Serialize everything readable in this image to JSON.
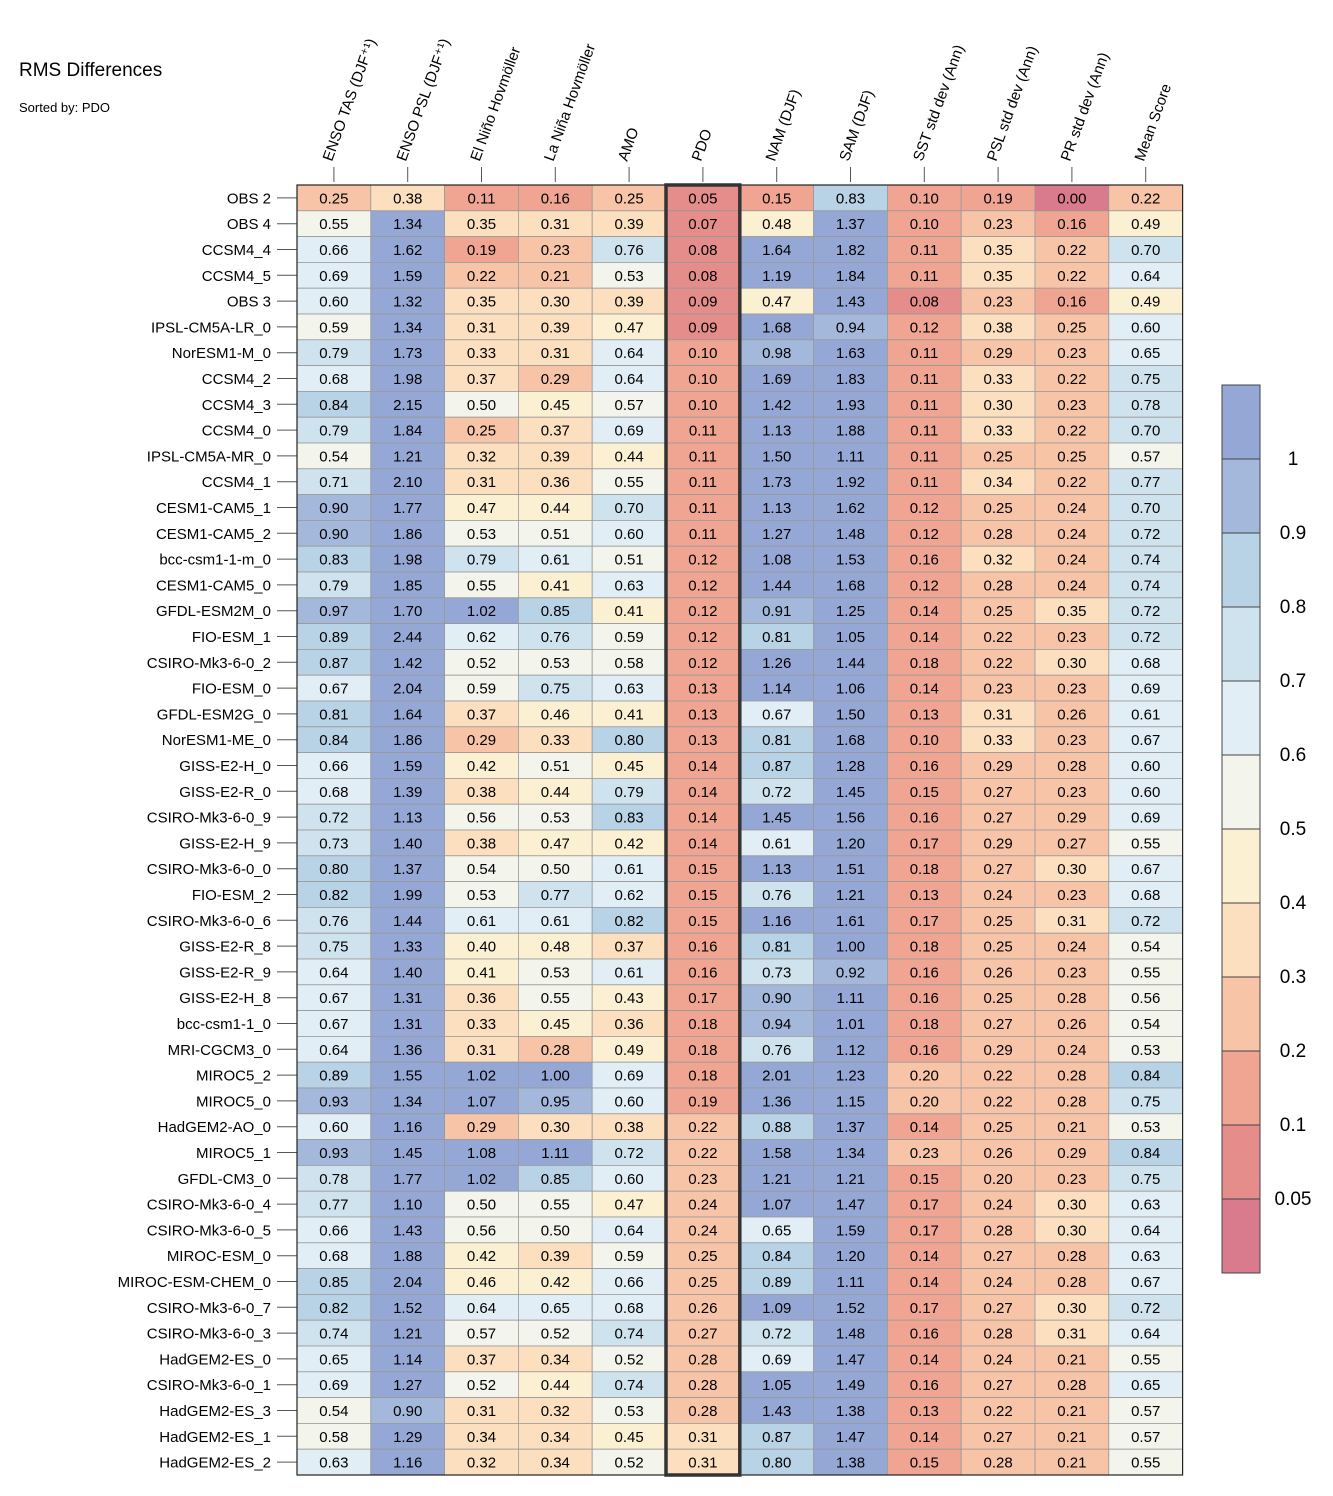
{
  "chart_data": {
    "type": "heatmap",
    "title": "RMS Differences",
    "subtitle": "Sorted by: PDO",
    "columns": [
      "ENSO TAS (DJF⁺¹)",
      "ENSO PSL (DJF⁺¹)",
      "El Niño Hovmöller",
      "La Niña Hovmöller",
      "AMO",
      "PDO",
      "NAM (DJF)",
      "SAM (DJF)",
      "SST std dev (Ann)",
      "PSL std dev (Ann)",
      "PR std dev (Ann)",
      "Mean Score"
    ],
    "highlighted_column": "PDO",
    "rows": [
      "OBS 2",
      "OBS 4",
      "CCSM4_4",
      "CCSM4_5",
      "OBS 3",
      "IPSL-CM5A-LR_0",
      "NorESM1-M_0",
      "CCSM4_2",
      "CCSM4_3",
      "CCSM4_0",
      "IPSL-CM5A-MR_0",
      "CCSM4_1",
      "CESM1-CAM5_1",
      "CESM1-CAM5_2",
      "bcc-csm1-1-m_0",
      "CESM1-CAM5_0",
      "GFDL-ESM2M_0",
      "FIO-ESM_1",
      "CSIRO-Mk3-6-0_2",
      "FIO-ESM_0",
      "GFDL-ESM2G_0",
      "NorESM1-ME_0",
      "GISS-E2-H_0",
      "GISS-E2-R_0",
      "CSIRO-Mk3-6-0_9",
      "GISS-E2-H_9",
      "CSIRO-Mk3-6-0_0",
      "FIO-ESM_2",
      "CSIRO-Mk3-6-0_6",
      "GISS-E2-R_8",
      "GISS-E2-R_9",
      "GISS-E2-H_8",
      "bcc-csm1-1_0",
      "MRI-CGCM3_0",
      "MIROC5_2",
      "MIROC5_0",
      "HadGEM2-AO_0",
      "MIROC5_1",
      "GFDL-CM3_0",
      "CSIRO-Mk3-6-0_4",
      "CSIRO-Mk3-6-0_5",
      "MIROC-ESM_0",
      "MIROC-ESM-CHEM_0",
      "CSIRO-Mk3-6-0_7",
      "CSIRO-Mk3-6-0_3",
      "HadGEM2-ES_0",
      "CSIRO-Mk3-6-0_1",
      "HadGEM2-ES_3",
      "HadGEM2-ES_1",
      "HadGEM2-ES_2"
    ],
    "values": [
      [
        "0.25",
        "0.38",
        "0.11",
        "0.16",
        "0.25",
        "0.05",
        "0.15",
        "0.83",
        "0.10",
        "0.19",
        "0.00",
        "0.22"
      ],
      [
        "0.55",
        "1.34",
        "0.35",
        "0.31",
        "0.39",
        "0.07",
        "0.48",
        "1.37",
        "0.10",
        "0.23",
        "0.16",
        "0.49"
      ],
      [
        "0.66",
        "1.62",
        "0.19",
        "0.23",
        "0.76",
        "0.08",
        "1.64",
        "1.82",
        "0.11",
        "0.35",
        "0.22",
        "0.70"
      ],
      [
        "0.69",
        "1.59",
        "0.22",
        "0.21",
        "0.53",
        "0.08",
        "1.19",
        "1.84",
        "0.11",
        "0.35",
        "0.22",
        "0.64"
      ],
      [
        "0.60",
        "1.32",
        "0.35",
        "0.30",
        "0.39",
        "0.09",
        "0.47",
        "1.43",
        "0.08",
        "0.23",
        "0.16",
        "0.49"
      ],
      [
        "0.59",
        "1.34",
        "0.31",
        "0.39",
        "0.47",
        "0.09",
        "1.68",
        "0.94",
        "0.12",
        "0.38",
        "0.25",
        "0.60"
      ],
      [
        "0.79",
        "1.73",
        "0.33",
        "0.31",
        "0.64",
        "0.10",
        "0.98",
        "1.63",
        "0.11",
        "0.29",
        "0.23",
        "0.65"
      ],
      [
        "0.68",
        "1.98",
        "0.37",
        "0.29",
        "0.64",
        "0.10",
        "1.69",
        "1.83",
        "0.11",
        "0.33",
        "0.22",
        "0.75"
      ],
      [
        "0.84",
        "2.15",
        "0.50",
        "0.45",
        "0.57",
        "0.10",
        "1.42",
        "1.93",
        "0.11",
        "0.30",
        "0.23",
        "0.78"
      ],
      [
        "0.79",
        "1.84",
        "0.25",
        "0.37",
        "0.69",
        "0.11",
        "1.13",
        "1.88",
        "0.11",
        "0.33",
        "0.22",
        "0.70"
      ],
      [
        "0.54",
        "1.21",
        "0.32",
        "0.39",
        "0.44",
        "0.11",
        "1.50",
        "1.11",
        "0.11",
        "0.25",
        "0.25",
        "0.57"
      ],
      [
        "0.71",
        "2.10",
        "0.31",
        "0.36",
        "0.55",
        "0.11",
        "1.73",
        "1.92",
        "0.11",
        "0.34",
        "0.22",
        "0.77"
      ],
      [
        "0.90",
        "1.77",
        "0.47",
        "0.44",
        "0.70",
        "0.11",
        "1.13",
        "1.62",
        "0.12",
        "0.25",
        "0.24",
        "0.70"
      ],
      [
        "0.90",
        "1.86",
        "0.53",
        "0.51",
        "0.60",
        "0.11",
        "1.27",
        "1.48",
        "0.12",
        "0.28",
        "0.24",
        "0.72"
      ],
      [
        "0.83",
        "1.98",
        "0.79",
        "0.61",
        "0.51",
        "0.12",
        "1.08",
        "1.53",
        "0.16",
        "0.32",
        "0.24",
        "0.74"
      ],
      [
        "0.79",
        "1.85",
        "0.55",
        "0.41",
        "0.63",
        "0.12",
        "1.44",
        "1.68",
        "0.12",
        "0.28",
        "0.24",
        "0.74"
      ],
      [
        "0.97",
        "1.70",
        "1.02",
        "0.85",
        "0.41",
        "0.12",
        "0.91",
        "1.25",
        "0.14",
        "0.25",
        "0.35",
        "0.72"
      ],
      [
        "0.89",
        "2.44",
        "0.62",
        "0.76",
        "0.59",
        "0.12",
        "0.81",
        "1.05",
        "0.14",
        "0.22",
        "0.23",
        "0.72"
      ],
      [
        "0.87",
        "1.42",
        "0.52",
        "0.53",
        "0.58",
        "0.12",
        "1.26",
        "1.44",
        "0.18",
        "0.22",
        "0.30",
        "0.68"
      ],
      [
        "0.67",
        "2.04",
        "0.59",
        "0.75",
        "0.63",
        "0.13",
        "1.14",
        "1.06",
        "0.14",
        "0.23",
        "0.23",
        "0.69"
      ],
      [
        "0.81",
        "1.64",
        "0.37",
        "0.46",
        "0.41",
        "0.13",
        "0.67",
        "1.50",
        "0.13",
        "0.31",
        "0.26",
        "0.61"
      ],
      [
        "0.84",
        "1.86",
        "0.29",
        "0.33",
        "0.80",
        "0.13",
        "0.81",
        "1.68",
        "0.10",
        "0.33",
        "0.23",
        "0.67"
      ],
      [
        "0.66",
        "1.59",
        "0.42",
        "0.51",
        "0.45",
        "0.14",
        "0.87",
        "1.28",
        "0.16",
        "0.29",
        "0.28",
        "0.60"
      ],
      [
        "0.68",
        "1.39",
        "0.38",
        "0.44",
        "0.79",
        "0.14",
        "0.72",
        "1.45",
        "0.15",
        "0.27",
        "0.23",
        "0.60"
      ],
      [
        "0.72",
        "1.13",
        "0.56",
        "0.53",
        "0.83",
        "0.14",
        "1.45",
        "1.56",
        "0.16",
        "0.27",
        "0.29",
        "0.69"
      ],
      [
        "0.73",
        "1.40",
        "0.38",
        "0.47",
        "0.42",
        "0.14",
        "0.61",
        "1.20",
        "0.17",
        "0.29",
        "0.27",
        "0.55"
      ],
      [
        "0.80",
        "1.37",
        "0.54",
        "0.50",
        "0.61",
        "0.15",
        "1.13",
        "1.51",
        "0.18",
        "0.27",
        "0.30",
        "0.67"
      ],
      [
        "0.82",
        "1.99",
        "0.53",
        "0.77",
        "0.62",
        "0.15",
        "0.76",
        "1.21",
        "0.13",
        "0.24",
        "0.23",
        "0.68"
      ],
      [
        "0.76",
        "1.44",
        "0.61",
        "0.61",
        "0.82",
        "0.15",
        "1.16",
        "1.61",
        "0.17",
        "0.25",
        "0.31",
        "0.72"
      ],
      [
        "0.75",
        "1.33",
        "0.40",
        "0.48",
        "0.37",
        "0.16",
        "0.81",
        "1.00",
        "0.18",
        "0.25",
        "0.24",
        "0.54"
      ],
      [
        "0.64",
        "1.40",
        "0.41",
        "0.53",
        "0.61",
        "0.16",
        "0.73",
        "0.92",
        "0.16",
        "0.26",
        "0.23",
        "0.55"
      ],
      [
        "0.67",
        "1.31",
        "0.36",
        "0.55",
        "0.43",
        "0.17",
        "0.90",
        "1.11",
        "0.16",
        "0.25",
        "0.28",
        "0.56"
      ],
      [
        "0.67",
        "1.31",
        "0.33",
        "0.45",
        "0.36",
        "0.18",
        "0.94",
        "1.01",
        "0.18",
        "0.27",
        "0.26",
        "0.54"
      ],
      [
        "0.64",
        "1.36",
        "0.31",
        "0.28",
        "0.49",
        "0.18",
        "0.76",
        "1.12",
        "0.16",
        "0.29",
        "0.24",
        "0.53"
      ],
      [
        "0.89",
        "1.55",
        "1.02",
        "1.00",
        "0.69",
        "0.18",
        "2.01",
        "1.23",
        "0.20",
        "0.22",
        "0.28",
        "0.84"
      ],
      [
        "0.93",
        "1.34",
        "1.07",
        "0.95",
        "0.60",
        "0.19",
        "1.36",
        "1.15",
        "0.20",
        "0.22",
        "0.28",
        "0.75"
      ],
      [
        "0.60",
        "1.16",
        "0.29",
        "0.30",
        "0.38",
        "0.22",
        "0.88",
        "1.37",
        "0.14",
        "0.25",
        "0.21",
        "0.53"
      ],
      [
        "0.93",
        "1.45",
        "1.08",
        "1.11",
        "0.72",
        "0.22",
        "1.58",
        "1.34",
        "0.23",
        "0.26",
        "0.29",
        "0.84"
      ],
      [
        "0.78",
        "1.77",
        "1.02",
        "0.85",
        "0.60",
        "0.23",
        "1.21",
        "1.21",
        "0.15",
        "0.20",
        "0.23",
        "0.75"
      ],
      [
        "0.77",
        "1.10",
        "0.50",
        "0.55",
        "0.47",
        "0.24",
        "1.07",
        "1.47",
        "0.17",
        "0.24",
        "0.30",
        "0.63"
      ],
      [
        "0.66",
        "1.43",
        "0.56",
        "0.50",
        "0.64",
        "0.24",
        "0.65",
        "1.59",
        "0.17",
        "0.28",
        "0.30",
        "0.64"
      ],
      [
        "0.68",
        "1.88",
        "0.42",
        "0.39",
        "0.59",
        "0.25",
        "0.84",
        "1.20",
        "0.14",
        "0.27",
        "0.28",
        "0.63"
      ],
      [
        "0.85",
        "2.04",
        "0.46",
        "0.42",
        "0.66",
        "0.25",
        "0.89",
        "1.11",
        "0.14",
        "0.24",
        "0.28",
        "0.67"
      ],
      [
        "0.82",
        "1.52",
        "0.64",
        "0.65",
        "0.68",
        "0.26",
        "1.09",
        "1.52",
        "0.17",
        "0.27",
        "0.30",
        "0.72"
      ],
      [
        "0.74",
        "1.21",
        "0.57",
        "0.52",
        "0.74",
        "0.27",
        "0.72",
        "1.48",
        "0.16",
        "0.28",
        "0.31",
        "0.64"
      ],
      [
        "0.65",
        "1.14",
        "0.37",
        "0.34",
        "0.52",
        "0.28",
        "0.69",
        "1.47",
        "0.14",
        "0.24",
        "0.21",
        "0.55"
      ],
      [
        "0.69",
        "1.27",
        "0.52",
        "0.44",
        "0.74",
        "0.28",
        "1.05",
        "1.49",
        "0.16",
        "0.27",
        "0.28",
        "0.65"
      ],
      [
        "0.54",
        "0.90",
        "0.31",
        "0.32",
        "0.53",
        "0.28",
        "1.43",
        "1.38",
        "0.13",
        "0.22",
        "0.21",
        "0.57"
      ],
      [
        "0.58",
        "1.29",
        "0.34",
        "0.34",
        "0.45",
        "0.31",
        "0.87",
        "1.47",
        "0.14",
        "0.27",
        "0.21",
        "0.57"
      ],
      [
        "0.63",
        "1.16",
        "0.32",
        "0.34",
        "0.52",
        "0.31",
        "0.80",
        "1.38",
        "0.15",
        "0.28",
        "0.21",
        "0.55"
      ]
    ],
    "colorbar": {
      "boundaries": [
        0.05,
        0.1,
        0.2,
        0.3,
        0.4,
        0.5,
        0.6,
        0.7,
        0.8,
        0.9,
        1
      ],
      "tick_labels": [
        "0.05",
        "0.1",
        "0.2",
        "0.3",
        "0.4",
        "0.5",
        "0.6",
        "0.7",
        "0.8",
        "0.9",
        "1"
      ],
      "colors": [
        "#d97b8c",
        "#e48d8b",
        "#f0a593",
        "#f8c4a8",
        "#fbdfbe",
        "#fcf0d2",
        "#f3f4ec",
        "#e2eef5",
        "#cfe3ef",
        "#b8d2e6",
        "#a3b8da",
        "#95a7d4"
      ]
    }
  }
}
